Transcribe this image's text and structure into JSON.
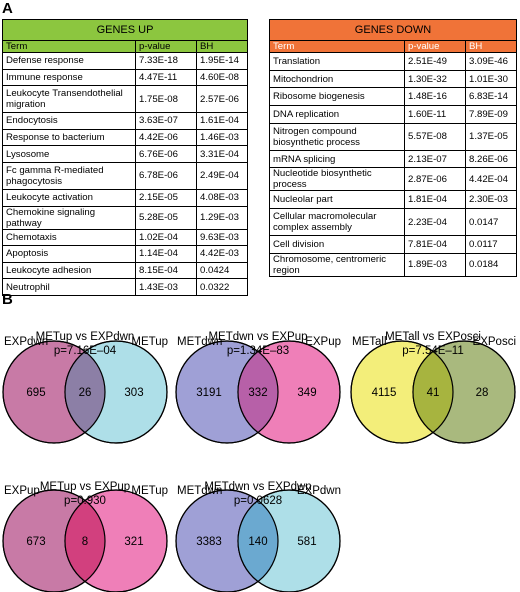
{
  "panel_a": {
    "letter": "A",
    "genes_up": {
      "title": "GENES UP",
      "headers": [
        "Term",
        "p-value",
        "BH"
      ],
      "rows": [
        [
          "Defense response",
          "7.33E-18",
          "1.95E-14"
        ],
        [
          "Immune response",
          "4.47E-11",
          "4.60E-08"
        ],
        [
          "Leukocyte Transendothelial migration",
          "1.75E-08",
          "2.57E-06"
        ],
        [
          "Endocytosis",
          "3.63E-07",
          "1.61E-04"
        ],
        [
          "Response to bacterium",
          "4.42E-06",
          "1.46E-03"
        ],
        [
          "Lysosome",
          "6.76E-06",
          "3.31E-04"
        ],
        [
          "Fc gamma R-mediated phagocytosis",
          "6.78E-06",
          "2.49E-04"
        ],
        [
          "Leukocyte activation",
          "2.15E-05",
          "4.08E-03"
        ],
        [
          "Chemokine signaling pathway",
          "5.28E-05",
          "1.29E-03"
        ],
        [
          "Chemotaxis",
          "1.02E-04",
          "9.63E-03"
        ],
        [
          "Apoptosis",
          "1.14E-04",
          "4.42E-03"
        ],
        [
          "Leukocyte adhesion",
          "8.15E-04",
          "0.0424"
        ],
        [
          "Neutrophil",
          "1.43E-03",
          "0.0322"
        ]
      ]
    },
    "genes_down": {
      "title": "GENES DOWN",
      "headers": [
        "Term",
        "p-value",
        "BH"
      ],
      "rows": [
        [
          "Translation",
          "2.51E-49",
          "3.09E-46"
        ],
        [
          "Mitochondrion",
          "1.30E-32",
          "1.01E-30"
        ],
        [
          "Ribosome biogenesis",
          "1.48E-16",
          "6.83E-14"
        ],
        [
          "DNA replication",
          "1.60E-11",
          "7.89E-09"
        ],
        [
          "Nitrogen compound biosynthetic process",
          "5.57E-08",
          "1.37E-05"
        ],
        [
          "mRNA splicing",
          "2.13E-07",
          "8.26E-06"
        ],
        [
          "Nucleotide biosynthetic process",
          "2.87E-06",
          "4.42E-04"
        ],
        [
          "Nucleolar part",
          "1.81E-04",
          "2.30E-03"
        ],
        [
          "Cellular macromolecular complex assembly",
          "2.23E-04",
          "0.0147"
        ],
        [
          "Cell division",
          "7.81E-04",
          "0.0117"
        ],
        [
          "Chromosome, centromeric region",
          "1.89E-03",
          "0.0184"
        ]
      ]
    }
  },
  "panel_b": {
    "letter": "B",
    "venns": [
      {
        "title": "METup vs EXPdwn",
        "pvalue": "p=7.16E–04",
        "left_label": "EXPdwn",
        "right_label": "METup",
        "left_only": "695",
        "overlap": "26",
        "right_only": "303",
        "left_color": "#c87aa6",
        "right_color": "#aedfe8",
        "overlap_color": "#8c7fa6"
      },
      {
        "title": "METdwn vs EXPup",
        "pvalue": "p=1.34E–83",
        "left_label": "METdwn",
        "right_label": "EXPup",
        "left_only": "3191",
        "overlap": "332",
        "right_only": "349",
        "left_color": "#9fa0d6",
        "right_color": "#ef7fb8",
        "overlap_color": "#b760a8"
      },
      {
        "title": "METall vs EXPosci",
        "pvalue": "p=7.54E–11",
        "left_label": "METall",
        "right_label": "EXPosci",
        "left_only": "4115",
        "overlap": "41",
        "right_only": "28",
        "left_color": "#f3ee7a",
        "right_color": "#a9b97e",
        "overlap_color": "#a7b43f"
      },
      {
        "title": "METup vs EXPup",
        "pvalue": "p=0.930",
        "left_label": "EXPup",
        "right_label": "METup",
        "left_only": "673",
        "overlap": "8",
        "right_only": "321",
        "left_color": "#c87aa6",
        "right_color": "#ef7fb8",
        "overlap_color": "#d2407e"
      },
      {
        "title": "METdwn vs EXPdwn",
        "pvalue": "p=0.0628",
        "left_label": "METdwn",
        "right_label": "EXPdwn",
        "left_only": "3383",
        "overlap": "140",
        "right_only": "581",
        "left_color": "#9fa0d6",
        "right_color": "#aedfe8",
        "overlap_color": "#6ba9d0"
      }
    ]
  }
}
